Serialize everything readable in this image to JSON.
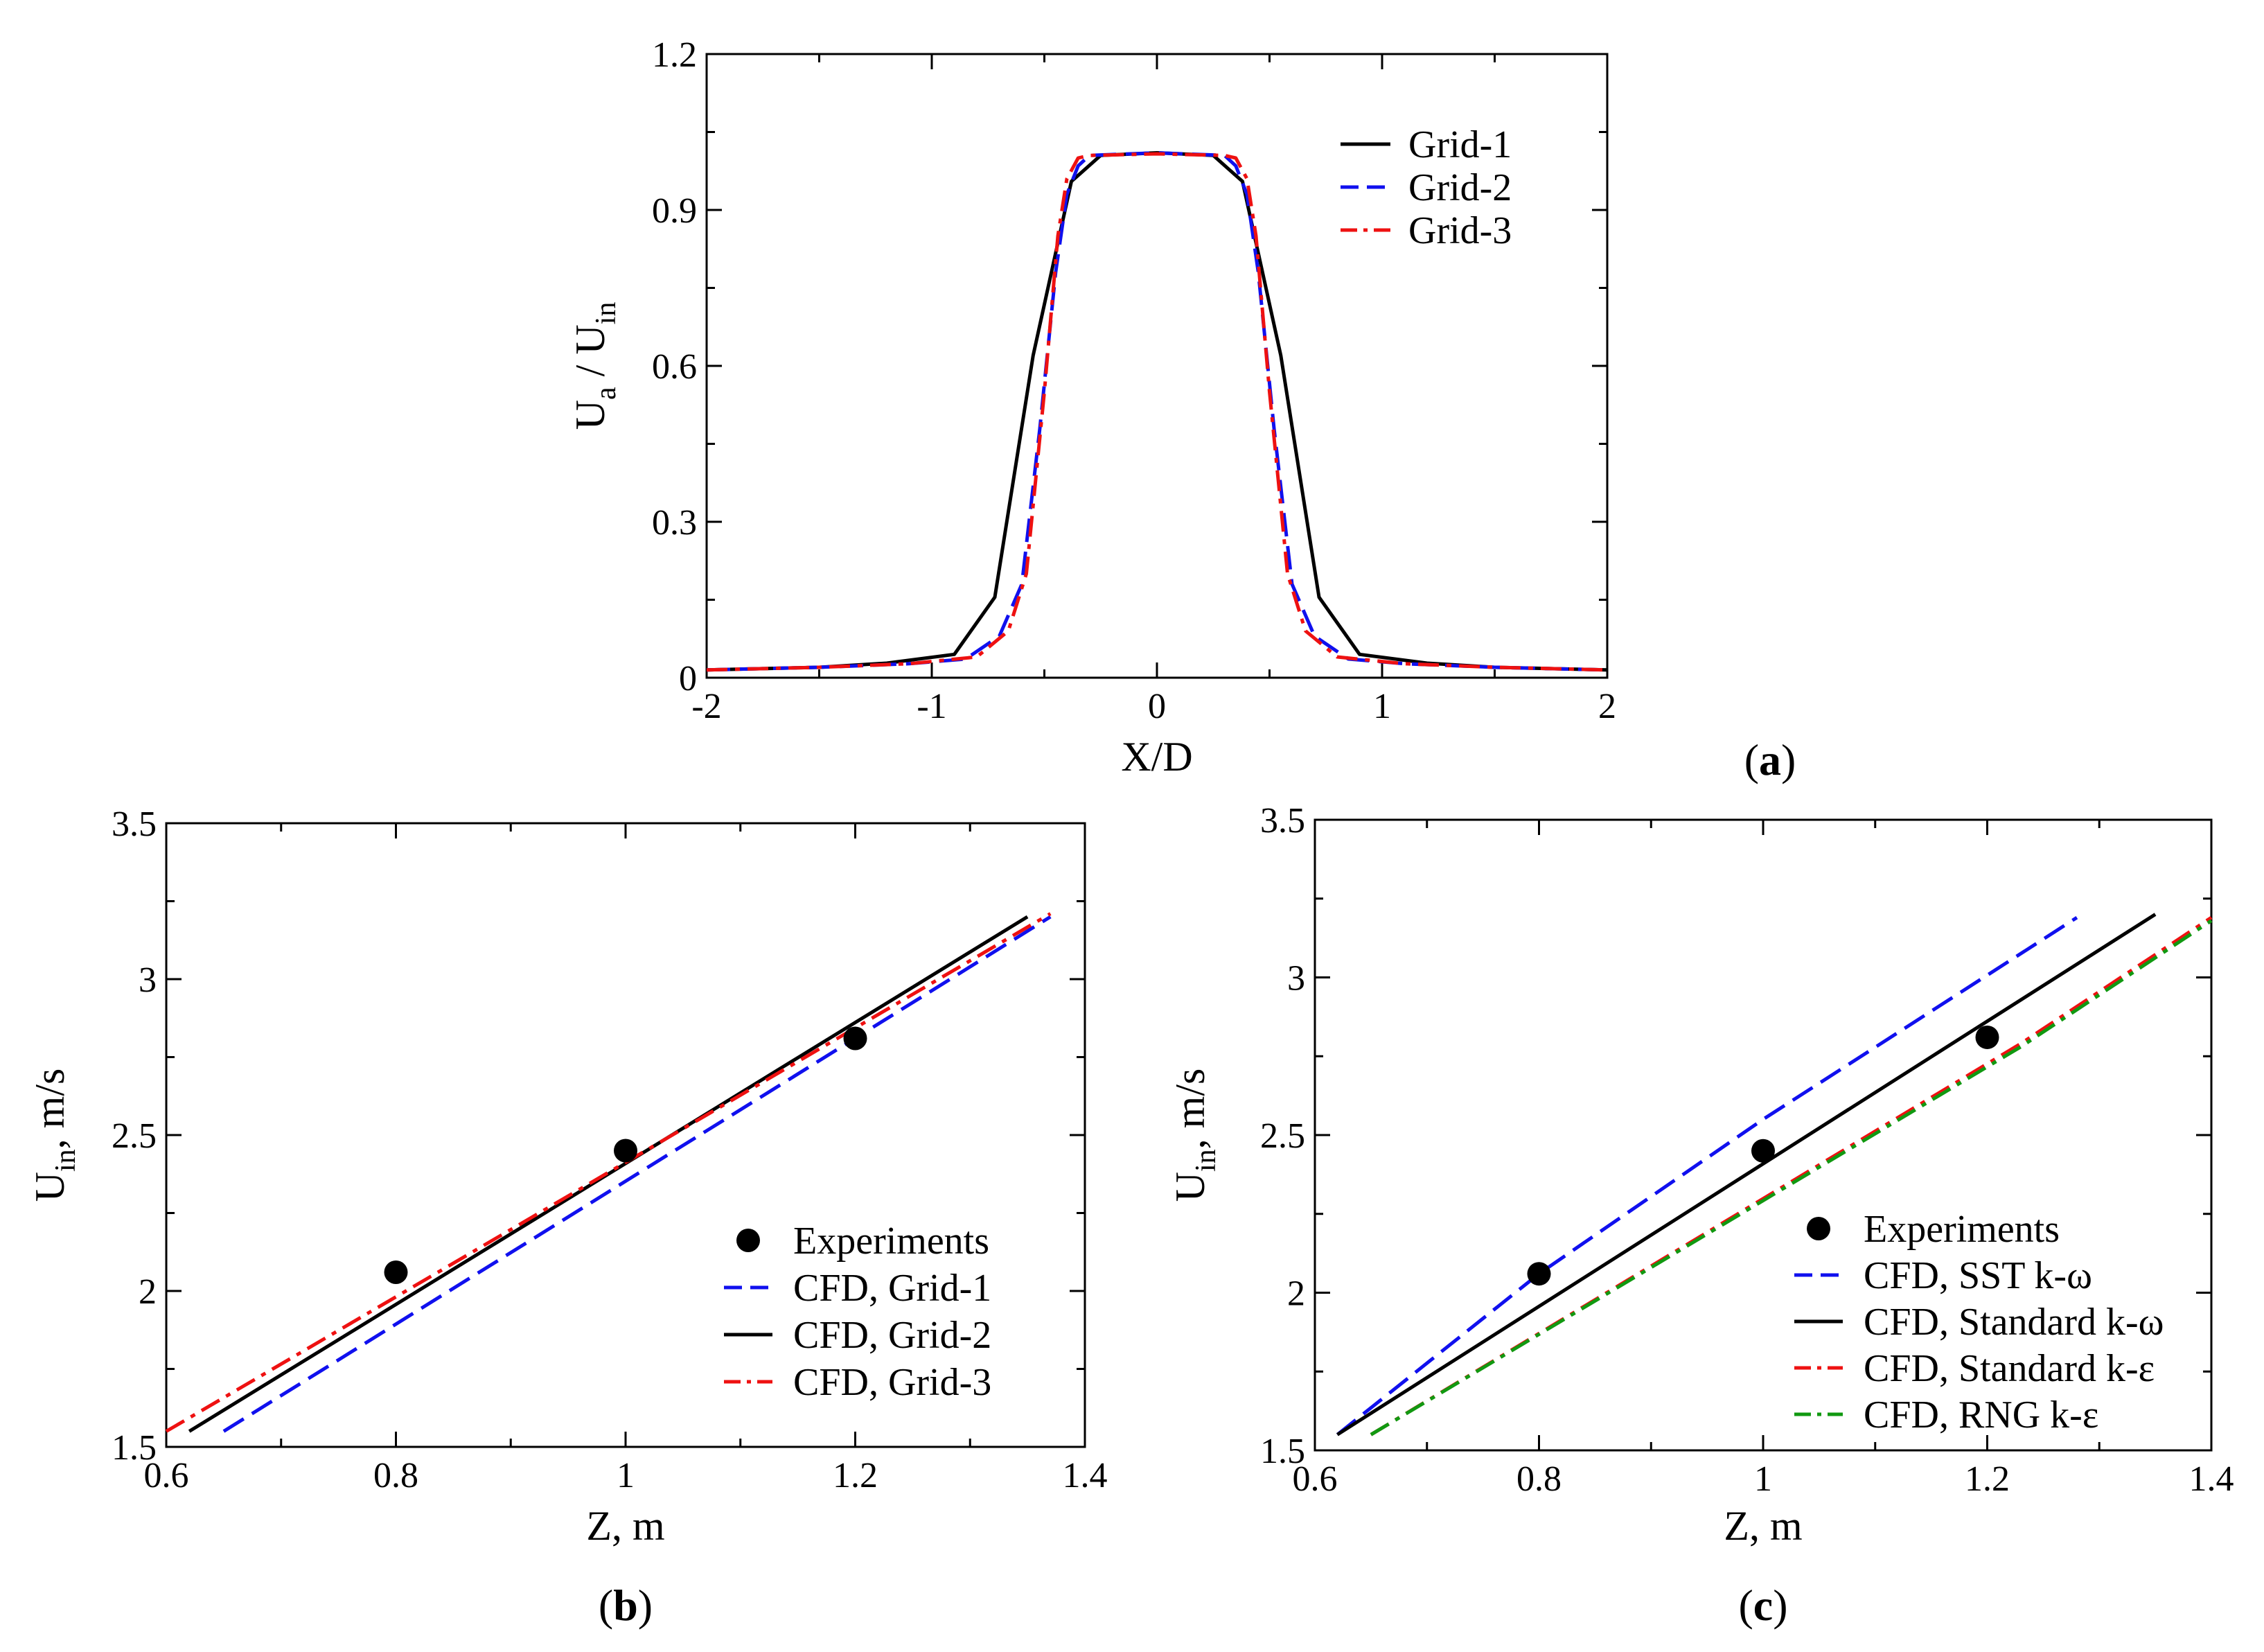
{
  "figure": {
    "panels_note": "three-panel figure",
    "colors": {
      "black": "#000000",
      "blue": "#1010ee",
      "red": "#ee1111",
      "green": "#119911"
    }
  },
  "chart_data": [
    {
      "id": "a",
      "type": "line",
      "panel_label": "a",
      "xlabel": "X/D",
      "ylabel_main": "U",
      "ylabel_sub1": "a",
      "ylabel_mid": " / U",
      "ylabel_sub2": "in",
      "xlim": [
        -2,
        2
      ],
      "ylim": [
        0,
        1.2
      ],
      "xticks": [
        -2,
        -1,
        0,
        1,
        2
      ],
      "xtick_labels": [
        "-2",
        "-1",
        "0",
        "1",
        "2"
      ],
      "yticks": [
        0,
        0.3,
        0.6,
        0.9,
        1.2
      ],
      "ytick_labels": [
        "0",
        "0.3",
        "0.6",
        "0.9",
        "1.2"
      ],
      "legend_position": "top-right",
      "series": [
        {
          "name": "Grid-1",
          "color": "#000000",
          "dash": "solid",
          "x": [
            -2,
            -1.5,
            -1.2,
            -0.9,
            -0.72,
            -0.55,
            -0.38,
            -0.25,
            0,
            0.25,
            0.38,
            0.55,
            0.72,
            0.9,
            1.2,
            1.5,
            2
          ],
          "y": [
            0.015,
            0.02,
            0.028,
            0.045,
            0.155,
            0.62,
            0.955,
            1.005,
            1.01,
            1.005,
            0.955,
            0.62,
            0.155,
            0.045,
            0.028,
            0.02,
            0.015
          ]
        },
        {
          "name": "Grid-2",
          "color": "#1010ee",
          "dash": "long-dash",
          "x": [
            -2,
            -1.5,
            -1.1,
            -0.85,
            -0.7,
            -0.6,
            -0.52,
            -0.45,
            -0.4,
            -0.35,
            -0.3,
            0,
            0.3,
            0.35,
            0.4,
            0.45,
            0.52,
            0.6,
            0.7,
            0.85,
            1.1,
            1.5,
            2
          ],
          "y": [
            0.015,
            0.02,
            0.027,
            0.036,
            0.08,
            0.18,
            0.48,
            0.78,
            0.93,
            0.985,
            1.005,
            1.01,
            1.005,
            0.985,
            0.93,
            0.78,
            0.48,
            0.18,
            0.08,
            0.036,
            0.027,
            0.02,
            0.015
          ]
        },
        {
          "name": "Grid-3",
          "color": "#ee1111",
          "dash": "dash-dot",
          "x": [
            -2,
            -1.5,
            -1.1,
            -0.8,
            -0.66,
            -0.58,
            -0.5,
            -0.44,
            -0.4,
            -0.35,
            -0.3,
            0,
            0.3,
            0.35,
            0.4,
            0.44,
            0.5,
            0.58,
            0.66,
            0.8,
            1.1,
            1.5,
            2
          ],
          "y": [
            0.015,
            0.02,
            0.027,
            0.04,
            0.09,
            0.2,
            0.55,
            0.85,
            0.96,
            1.0,
            1.005,
            1.008,
            1.005,
            1.0,
            0.96,
            0.85,
            0.55,
            0.2,
            0.09,
            0.04,
            0.027,
            0.02,
            0.015
          ]
        }
      ]
    },
    {
      "id": "b",
      "type": "line",
      "panel_label": "b",
      "xlabel": "Z, m",
      "ylabel_main": "U",
      "ylabel_sub": "in",
      "ylabel_rest": ", m/s",
      "xlim": [
        0.6,
        1.4
      ],
      "ylim": [
        1.5,
        3.5
      ],
      "xticks": [
        0.6,
        0.8,
        1.0,
        1.2,
        1.4
      ],
      "xtick_labels": [
        "0.6",
        "0.8",
        "1",
        "1.2",
        "1.4"
      ],
      "yticks": [
        1.5,
        2.0,
        2.5,
        3.0,
        3.5
      ],
      "ytick_labels": [
        "1.5",
        "2",
        "2.5",
        "3",
        "3.5"
      ],
      "legend_position": "bottom-right",
      "experiments": {
        "name": "Experiments",
        "x": [
          0.8,
          1.0,
          1.2
        ],
        "y": [
          2.06,
          2.45,
          2.81
        ]
      },
      "series": [
        {
          "name": "CFD, Grid-1",
          "color": "#1010ee",
          "dash": "long-dash",
          "x": [
            0.65,
            1.37
          ],
          "y": [
            1.55,
            3.2
          ]
        },
        {
          "name": "CFD, Grid-2",
          "color": "#000000",
          "dash": "solid",
          "x": [
            0.62,
            1.35
          ],
          "y": [
            1.55,
            3.2
          ]
        },
        {
          "name": "CFD, Grid-3",
          "color": "#ee1111",
          "dash": "dash-dot",
          "x": [
            0.6,
            1.37
          ],
          "y": [
            1.55,
            3.21
          ]
        }
      ]
    },
    {
      "id": "c",
      "type": "line",
      "panel_label": "c",
      "xlabel": "Z, m",
      "ylabel_main": "U",
      "ylabel_sub": "in",
      "ylabel_rest": ", m/s",
      "xlim": [
        0.6,
        1.4
      ],
      "ylim": [
        1.5,
        3.5
      ],
      "xticks": [
        0.6,
        0.8,
        1.0,
        1.2,
        1.4
      ],
      "xtick_labels": [
        "0.6",
        "0.8",
        "1",
        "1.2",
        "1.4"
      ],
      "yticks": [
        1.5,
        2.0,
        2.5,
        3.0,
        3.5
      ],
      "ytick_labels": [
        "1.5",
        "2",
        "2.5",
        "3",
        "3.5"
      ],
      "legend_position": "bottom-right",
      "experiments": {
        "name": "Experiments",
        "x": [
          0.8,
          1.0,
          1.2
        ],
        "y": [
          2.06,
          2.45,
          2.81
        ]
      },
      "series": [
        {
          "name": "CFD, SST k-ω",
          "color": "#1010ee",
          "dash": "long-dash",
          "x": [
            0.62,
            0.8,
            1.0,
            1.28
          ],
          "y": [
            1.55,
            2.06,
            2.55,
            3.19
          ]
        },
        {
          "name": "CFD, Standard k-ω",
          "color": "#000000",
          "dash": "solid",
          "x": [
            0.62,
            1.35
          ],
          "y": [
            1.55,
            3.2
          ]
        },
        {
          "name": "CFD, Standard k-ε",
          "color": "#ee1111",
          "dash": "dash-dot",
          "x": [
            0.65,
            1.23,
            1.4
          ],
          "y": [
            1.55,
            2.79,
            3.19
          ]
        },
        {
          "name": "CFD, RNG k-ε",
          "color": "#119911",
          "dash": "dash-dot",
          "x": [
            0.65,
            1.23,
            1.4
          ],
          "y": [
            1.55,
            2.78,
            3.18
          ]
        }
      ]
    }
  ]
}
